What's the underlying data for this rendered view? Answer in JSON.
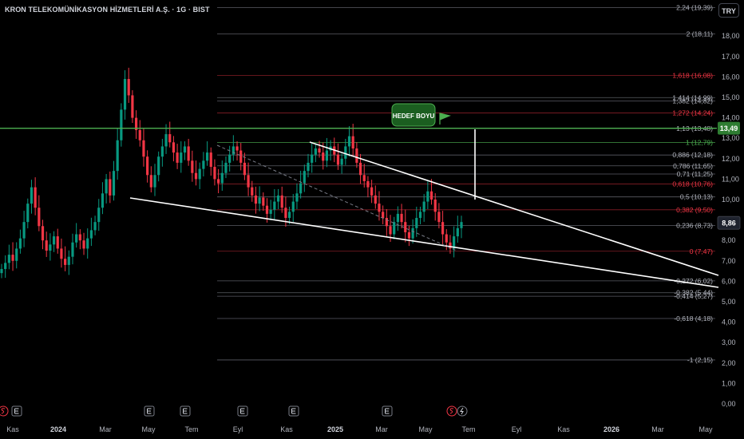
{
  "header": {
    "symbol_title": "KRON TELEKOMÜNİKASYON HİZMETLERİ A.Ş. · 1G · BIST",
    "currency_button": "TRY"
  },
  "colors": {
    "background": "#000000",
    "fib_white": "#787b86",
    "fib_red": "#b22833",
    "fib_label_red": "#f23645",
    "fib_label_white": "#b2b5be",
    "green_line": "#4caf50",
    "price_badge": "#2e7d32",
    "trendline": "#ffffff",
    "candle_up": "#089981",
    "candle_down": "#f23645",
    "event_icon_border": "#787b86",
    "dividend_icon": "#f23645"
  },
  "chart_data": {
    "type": "candlestick",
    "ylim": [
      0,
      19.8
    ],
    "y_ticks": [
      "0,00",
      "1,00",
      "2,00",
      "3,00",
      "4,00",
      "5,00",
      "6,00",
      "7,00",
      "8,00",
      "9,00",
      "10,00",
      "11,00",
      "12,00",
      "13,00",
      "14,00",
      "15,00",
      "16,00",
      "17,00",
      "18,00"
    ],
    "x_ticks": [
      "Kas",
      "2024",
      "Mar",
      "May",
      "Tem",
      "Eyl",
      "Kas",
      "2025",
      "Mar",
      "May",
      "Tem",
      "Eyl",
      "Kas",
      "2026",
      "Mar",
      "May"
    ],
    "x_ticks_bold": [
      "2024",
      "2025",
      "2026"
    ],
    "fib_levels": [
      {
        "label": "2,24 (19,39)",
        "value": 19.39,
        "color": "white"
      },
      {
        "label": "2 (18,11)",
        "value": 18.11,
        "color": "white"
      },
      {
        "label": "1,618 (16,08)",
        "value": 16.08,
        "color": "red"
      },
      {
        "label": "1,414 (14,99)",
        "value": 14.99,
        "color": "white"
      },
      {
        "label": "1,382 (14,82)",
        "value": 14.82,
        "color": "white"
      },
      {
        "label": "1,272 (14,24)",
        "value": 14.24,
        "color": "red"
      },
      {
        "label": "1,13 (13,48)",
        "value": 13.48,
        "color": "white"
      },
      {
        "label": "1 (12,79)",
        "value": 12.79,
        "color": "green"
      },
      {
        "label": "0,886 (12,18)",
        "value": 12.18,
        "color": "white"
      },
      {
        "label": "0,786 (11,65)",
        "value": 11.65,
        "color": "white"
      },
      {
        "label": "0,71 (11,25)",
        "value": 11.25,
        "color": "white"
      },
      {
        "label": "0,618 (10,76)",
        "value": 10.76,
        "color": "red"
      },
      {
        "label": "0,5 (10,13)",
        "value": 10.13,
        "color": "white"
      },
      {
        "label": "0,382 (9,50)",
        "value": 9.5,
        "color": "red"
      },
      {
        "label": "0,236 (8,73)",
        "value": 8.73,
        "color": "white"
      },
      {
        "label": "0 (7,47)",
        "value": 7.47,
        "color": "red"
      },
      {
        "label": "-0,272 (6,02)",
        "value": 6.02,
        "color": "white"
      },
      {
        "label": "-0,382 (5,44)",
        "value": 5.44,
        "color": "white"
      },
      {
        "label": "-0,414 (5,27)",
        "value": 5.27,
        "color": "white"
      },
      {
        "label": "-0,618 (4,18)",
        "value": 4.18,
        "color": "white"
      },
      {
        "label": "-1 (2,15)",
        "value": 2.15,
        "color": "white"
      }
    ],
    "horizontal_line": {
      "value": 13.49,
      "label": "13,49"
    },
    "last_price": {
      "value": 8.86,
      "label": "8,86"
    },
    "target_label": "HEDEF BOYU",
    "close_series": [
      6.6,
      6.9,
      7.3,
      7.0,
      7.6,
      8.1,
      8.9,
      9.8,
      10.6,
      9.6,
      8.7,
      8.0,
      7.5,
      7.8,
      8.2,
      7.6,
      7.1,
      6.8,
      7.2,
      7.9,
      8.3,
      8.0,
      7.6,
      8.1,
      8.5,
      8.9,
      9.6,
      10.3,
      11.0,
      10.2,
      11.4,
      12.9,
      14.4,
      15.9,
      15.1,
      14.0,
      13.4,
      12.9,
      12.1,
      11.2,
      10.6,
      11.2,
      12.1,
      12.6,
      13.2,
      12.8,
      12.3,
      11.8,
      12.3,
      12.6,
      11.9,
      11.3,
      11.0,
      11.5,
      11.9,
      12.3,
      11.6,
      11.0,
      10.8,
      11.3,
      11.8,
      12.2,
      12.6,
      12.4,
      11.8,
      11.2,
      10.6,
      10.2,
      9.8,
      10.1,
      9.7,
      9.3,
      9.5,
      9.9,
      10.2,
      9.6,
      9.1,
      9.4,
      9.9,
      10.3,
      10.8,
      11.4,
      11.8,
      12.2,
      12.5,
      12.3,
      11.9,
      12.4,
      12.6,
      12.2,
      11.7,
      12.0,
      12.6,
      13.1,
      12.5,
      11.8,
      11.2,
      10.9,
      10.6,
      10.2,
      9.8,
      9.4,
      9.1,
      8.7,
      8.3,
      8.9,
      9.3,
      8.9,
      8.4,
      8.1,
      8.6,
      9.1,
      9.4,
      9.9,
      10.4,
      10.0,
      9.4,
      8.9,
      8.3,
      7.9,
      7.6,
      8.2,
      8.6,
      8.9
    ]
  }
}
